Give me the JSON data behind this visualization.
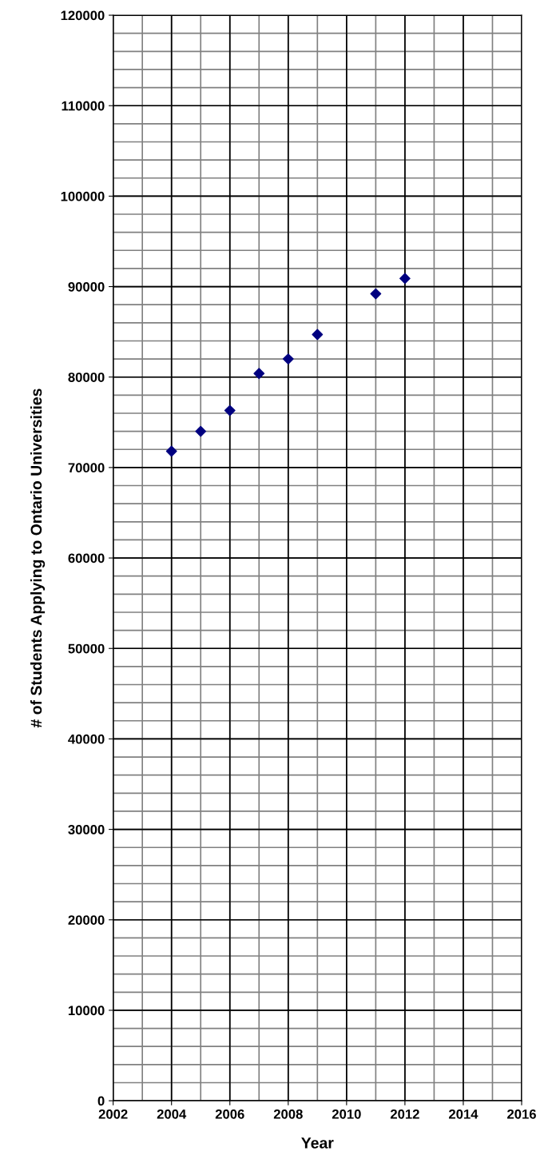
{
  "chart_data": {
    "type": "scatter",
    "xlabel": "Year",
    "ylabel": "# of Students Applying to Ontario Universities",
    "x": [
      2004,
      2005,
      2006,
      2007,
      2008,
      2009,
      2011,
      2012
    ],
    "series": [
      {
        "color": "#000080",
        "values": [
          71800,
          74000,
          76300,
          80400,
          82000,
          84700,
          89200,
          90900
        ]
      }
    ],
    "xlim": [
      2002,
      2016
    ],
    "xticks": [
      2002,
      2004,
      2006,
      2008,
      2010,
      2012,
      2014,
      2016
    ],
    "ylim": [
      0,
      120000
    ],
    "yticks": [
      0,
      10000,
      20000,
      30000,
      40000,
      50000,
      60000,
      70000,
      80000,
      90000,
      100000,
      110000,
      120000
    ],
    "grid": true,
    "marker": "diamond",
    "legend": false
  }
}
